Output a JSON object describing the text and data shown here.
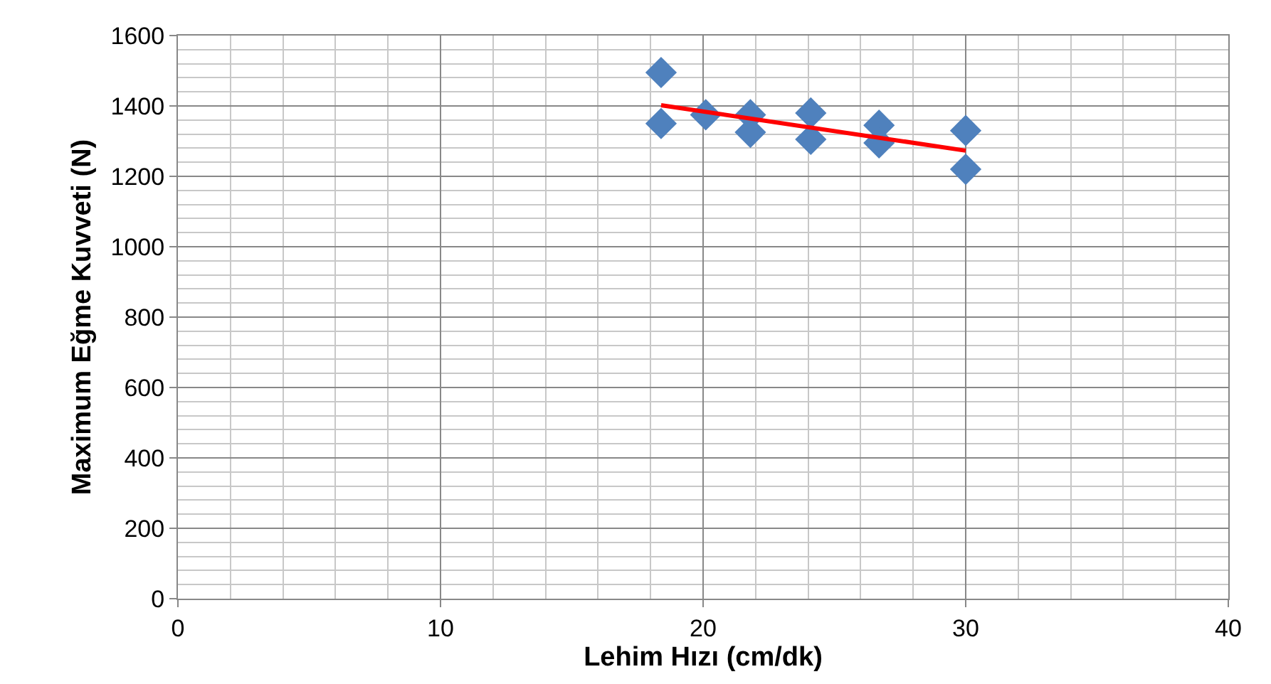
{
  "chart_data": {
    "type": "scatter",
    "xlabel": "Lehim Hızı (cm/dk)",
    "ylabel": "Maximum Eğme Kuvveti (N)",
    "series": [
      {
        "color": "#4f81bd",
        "marker": "diamond",
        "x": [
          18.4,
          18.4,
          20.1,
          21.8,
          21.8,
          24.1,
          24.1,
          26.7,
          26.7,
          30.0,
          30.0
        ],
        "values": [
          1495,
          1350,
          1375,
          1375,
          1325,
          1380,
          1305,
          1345,
          1295,
          1330,
          1220
        ]
      },
      {
        "type": "line",
        "color": "#ff0000",
        "marker": "none",
        "x": [
          18.4,
          30.0
        ],
        "values": [
          1402,
          1273
        ]
      }
    ],
    "xlim": [
      0,
      40
    ],
    "xticks": [
      0,
      10,
      20,
      30,
      40
    ],
    "ylim": [
      0,
      1600
    ],
    "yticks": [
      0,
      200,
      400,
      600,
      800,
      1000,
      1200,
      1400,
      1600
    ],
    "grid": true,
    "legend": false
  }
}
